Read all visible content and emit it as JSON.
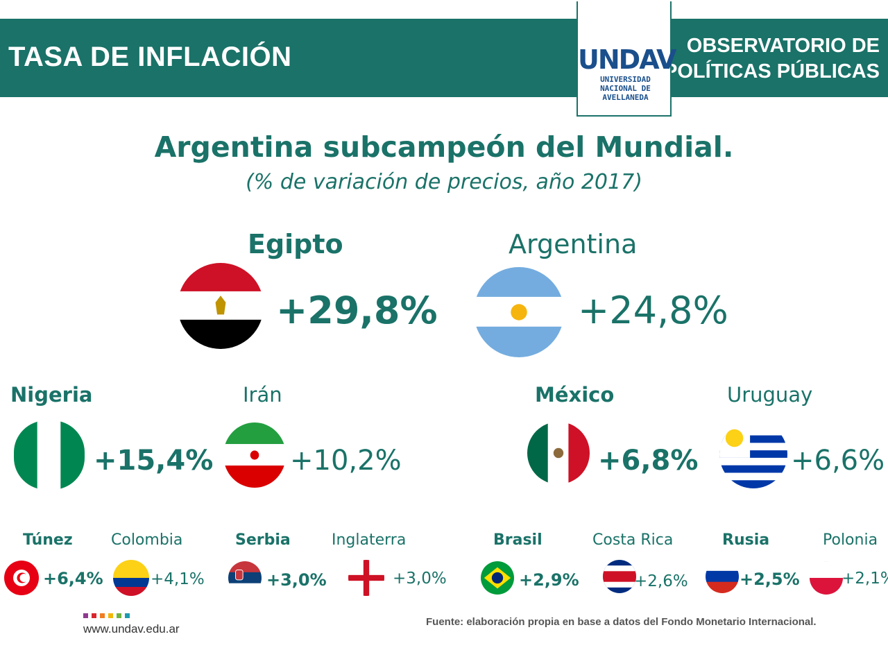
{
  "header": {
    "title": "TASA DE INFLACIÓN",
    "org_line1": "OBSERVATORIO DE",
    "org_line2": "POLÍTICAS PÚBLICAS",
    "logo_mark": "UNDAV",
    "logo_text": "UNIVERSIDAD\nNACIONAL DE\nAVELLANEDA",
    "bar_color": "#1a7268"
  },
  "chart_data": {
    "type": "table",
    "title": "Argentina subcampeón del Mundial.",
    "subtitle": "(% de variación de precios, año 2017)",
    "unit": "%",
    "countries": [
      {
        "name": "Egipto",
        "value": 29.8,
        "label": "+29,8%",
        "flag": "egypt-flag-icon"
      },
      {
        "name": "Argentina",
        "value": 24.8,
        "label": "+24,8%",
        "flag": "argentina-flag-icon"
      },
      {
        "name": "Nigeria",
        "value": 15.4,
        "label": "+15,4%",
        "flag": "nigeria-flag-icon"
      },
      {
        "name": "Irán",
        "value": 10.2,
        "label": "+10,2%",
        "flag": "iran-flag-icon"
      },
      {
        "name": "México",
        "value": 6.8,
        "label": "+6,8%",
        "flag": "mexico-flag-icon"
      },
      {
        "name": "Uruguay",
        "value": 6.6,
        "label": "+6,6%",
        "flag": "uruguay-flag-icon"
      },
      {
        "name": "Túnez",
        "value": 6.4,
        "label": "+6,4%",
        "flag": "tunisia-flag-icon"
      },
      {
        "name": "Colombia",
        "value": 4.1,
        "label": "+4,1%",
        "flag": "colombia-flag-icon"
      },
      {
        "name": "Serbia",
        "value": 3.0,
        "label": "+3,0%",
        "flag": "serbia-flag-icon"
      },
      {
        "name": "Inglaterra",
        "value": 3.0,
        "label": "+3,0%",
        "flag": "england-flag-icon"
      },
      {
        "name": "Brasil",
        "value": 2.9,
        "label": "+2,9%",
        "flag": "brazil-flag-icon"
      },
      {
        "name": "Costa Rica",
        "value": 2.6,
        "label": "+2,6%",
        "flag": "costa-rica-flag-icon"
      },
      {
        "name": "Rusia",
        "value": 2.5,
        "label": "+2,5%",
        "flag": "russia-flag-icon"
      },
      {
        "name": "Polonia",
        "value": 2.1,
        "label": "+2,1%",
        "flag": "poland-flag-icon"
      }
    ]
  },
  "footer": {
    "url": "www.undav.edu.ar",
    "source": "Fuente: elaboración propia en base a datos del Fondo Monetario Internacional.",
    "dot_colors": [
      "#8e3b8f",
      "#d9262e",
      "#ef7d22",
      "#f2b705",
      "#6fb23f",
      "#1c9bb0"
    ]
  }
}
